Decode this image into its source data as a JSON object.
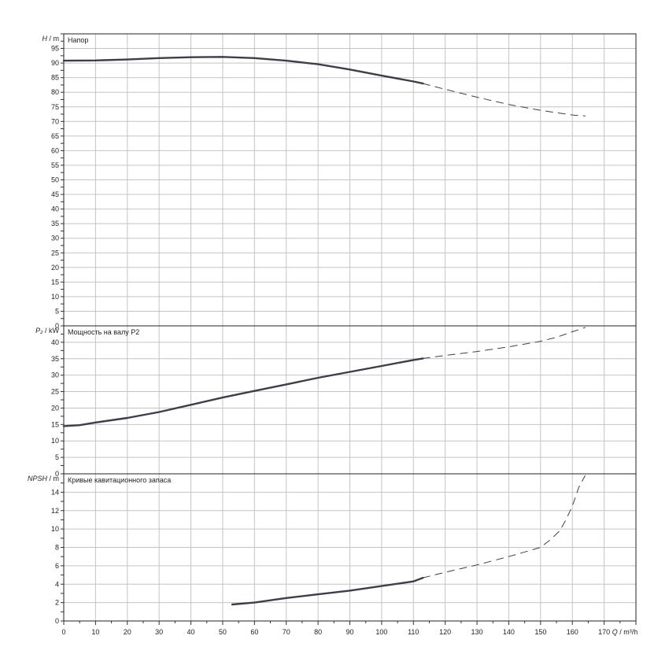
{
  "chart_data": [
    {
      "type": "line",
      "title": "Напор",
      "ylabel_symbol": "H",
      "ylabel_unit": "/ m",
      "xlim": [
        0,
        180
      ],
      "ylim": [
        0,
        100
      ],
      "y_ticks": [
        0,
        5,
        10,
        15,
        20,
        25,
        30,
        35,
        40,
        45,
        50,
        55,
        60,
        65,
        70,
        75,
        80,
        85,
        90,
        95
      ],
      "grid": true,
      "series": [
        {
          "style": "solid",
          "x": [
            0,
            10,
            20,
            30,
            40,
            50,
            60,
            70,
            80,
            90,
            100,
            110,
            113
          ],
          "y": [
            90.8,
            90.9,
            91.2,
            91.7,
            92.0,
            92.1,
            91.7,
            90.8,
            89.6,
            87.8,
            85.7,
            83.7,
            83.0
          ]
        },
        {
          "style": "dashed",
          "x": [
            113,
            120,
            130,
            140,
            150,
            160,
            164
          ],
          "y": [
            83.0,
            81.0,
            78.3,
            75.8,
            73.8,
            72.2,
            71.9
          ]
        }
      ]
    },
    {
      "type": "line",
      "title": "Мощность на валу P2",
      "ylabel_symbol": "P₂",
      "ylabel_unit": "/ kW",
      "xlim": [
        0,
        180
      ],
      "ylim": [
        0,
        45
      ],
      "y_ticks": [
        0,
        5,
        10,
        15,
        20,
        25,
        30,
        35,
        40
      ],
      "grid": true,
      "series": [
        {
          "style": "solid",
          "x": [
            0,
            5,
            10,
            20,
            30,
            40,
            50,
            60,
            70,
            80,
            90,
            100,
            110,
            113
          ],
          "y": [
            14.5,
            14.8,
            15.6,
            17.0,
            18.8,
            21.0,
            23.2,
            25.2,
            27.2,
            29.2,
            31.0,
            32.8,
            34.6,
            35.1
          ]
        },
        {
          "style": "dashed",
          "x": [
            113,
            120,
            130,
            140,
            150,
            155,
            160,
            164
          ],
          "y": [
            35.1,
            36.0,
            37.2,
            38.6,
            40.3,
            41.5,
            43.2,
            44.5
          ]
        }
      ]
    },
    {
      "type": "line",
      "title": "Кривые кавитационного запаса",
      "ylabel_symbol": "NPSH",
      "ylabel_unit": "/ m",
      "xlabel_symbol": "Q",
      "xlabel_unit": "/ m³/h",
      "xlim": [
        0,
        180
      ],
      "ylim": [
        0,
        16
      ],
      "y_ticks": [
        0,
        2,
        4,
        6,
        8,
        10,
        12,
        14
      ],
      "x_ticks": [
        0,
        10,
        20,
        30,
        40,
        50,
        60,
        70,
        80,
        90,
        100,
        110,
        120,
        130,
        140,
        150,
        160,
        170
      ],
      "grid": true,
      "series": [
        {
          "style": "solid",
          "x": [
            53,
            60,
            70,
            80,
            90,
            100,
            110,
            113
          ],
          "y": [
            1.8,
            2.0,
            2.5,
            2.9,
            3.3,
            3.8,
            4.3,
            4.7
          ]
        },
        {
          "style": "dashed",
          "x": [
            113,
            120,
            130,
            140,
            150,
            153,
            156,
            158,
            160,
            162,
            164
          ],
          "y": [
            4.7,
            5.3,
            6.1,
            7.0,
            8.0,
            8.8,
            9.8,
            11.0,
            12.5,
            14.5,
            15.8
          ]
        }
      ]
    }
  ]
}
